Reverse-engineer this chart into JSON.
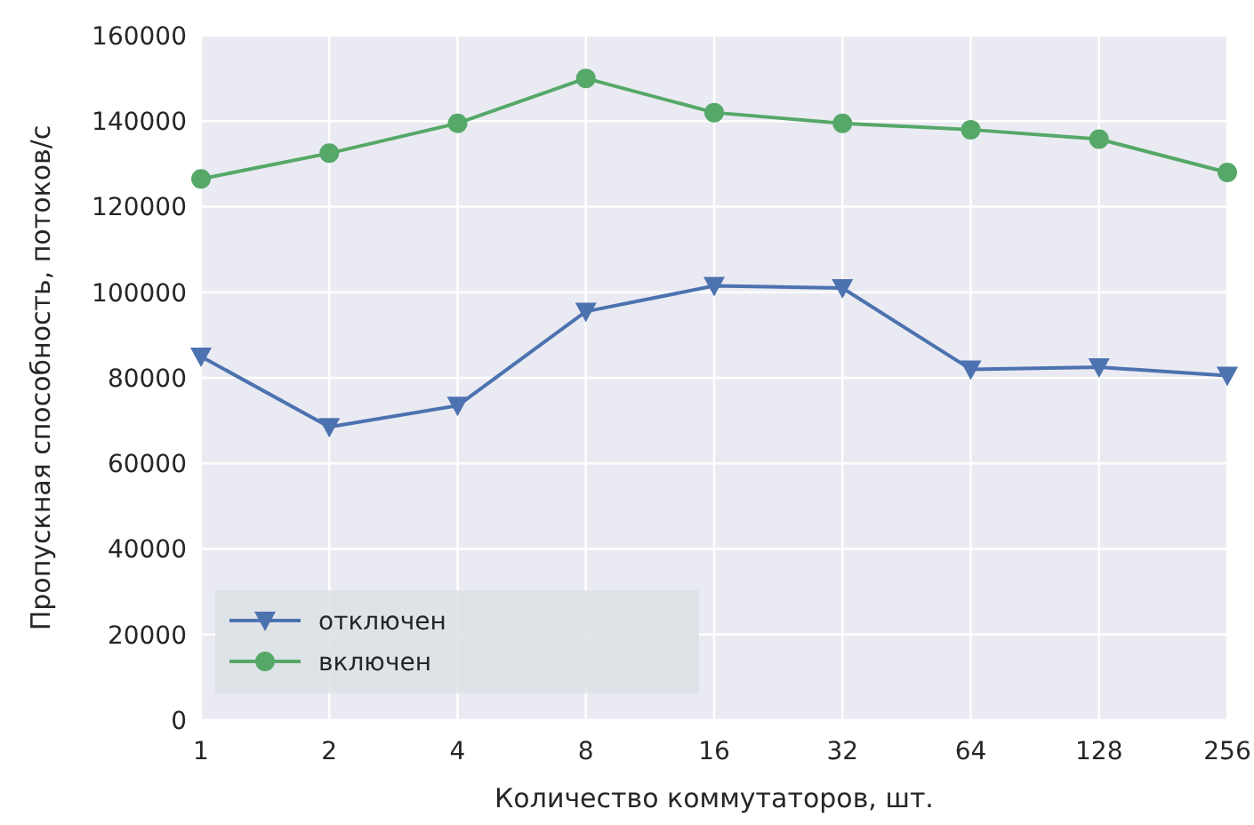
{
  "chart_data": {
    "type": "line",
    "xlabel": "Количество коммутаторов, шт.",
    "ylabel": "Пропускная способность, потоков/с",
    "categories": [
      "1",
      "2",
      "4",
      "8",
      "16",
      "32",
      "64",
      "128",
      "256"
    ],
    "series": [
      {
        "name": "отключен",
        "color": "#4c72b0",
        "marker": "triangle",
        "values": [
          85000,
          68500,
          73500,
          95500,
          101500,
          101000,
          82000,
          82500,
          80500
        ]
      },
      {
        "name": "включен",
        "color": "#55a868",
        "marker": "circle",
        "values": [
          126500,
          132500,
          139500,
          150000,
          142000,
          139500,
          138000,
          135800,
          128000
        ]
      }
    ],
    "ylim": [
      0,
      160000
    ],
    "yticks": [
      0,
      20000,
      40000,
      60000,
      80000,
      100000,
      120000,
      140000,
      160000
    ],
    "grid": true,
    "legend": "bottom left"
  }
}
